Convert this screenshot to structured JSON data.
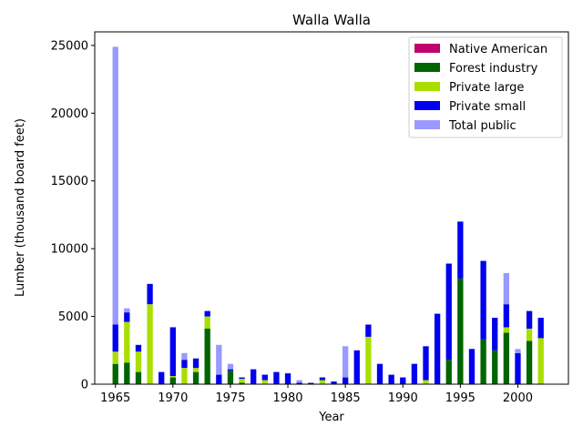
{
  "chart_data": {
    "type": "bar",
    "stacked": true,
    "title": "Walla Walla",
    "xlabel": "Year",
    "ylabel": "Lumber (thousand board feet)",
    "xlim": [
      1963.2,
      2004.4
    ],
    "ylim": [
      0,
      26000
    ],
    "xticks": [
      1965,
      1970,
      1975,
      1980,
      1985,
      1990,
      1995,
      2000
    ],
    "yticks": [
      0,
      5000,
      10000,
      15000,
      20000,
      25000
    ],
    "legend_position": "top-right",
    "grid": false,
    "x": [
      1965,
      1966,
      1967,
      1968,
      1969,
      1970,
      1971,
      1972,
      1973,
      1974,
      1975,
      1976,
      1977,
      1978,
      1979,
      1980,
      1981,
      1982,
      1983,
      1984,
      1985,
      1986,
      1987,
      1988,
      1989,
      1990,
      1991,
      1992,
      1993,
      1994,
      1995,
      1996,
      1997,
      1998,
      1999,
      2000,
      2001,
      2002
    ],
    "series": [
      {
        "name": "Native American",
        "color": "#c0006f",
        "values": [
          0,
          0,
          0,
          0,
          0,
          0,
          0,
          0,
          0,
          0,
          0,
          0,
          0,
          0,
          0,
          0,
          0,
          0,
          0,
          0,
          0,
          0,
          0,
          0,
          0,
          0,
          0,
          0,
          0,
          0,
          0,
          0,
          0,
          0,
          0,
          0,
          0,
          0
        ]
      },
      {
        "name": "Forest industry",
        "color": "#006400",
        "values": [
          1500,
          1600,
          900,
          0,
          0,
          500,
          0,
          900,
          4100,
          0,
          1000,
          100,
          0,
          0,
          0,
          0,
          0,
          0,
          0,
          0,
          0,
          0,
          0,
          0,
          0,
          0,
          0,
          0,
          0,
          1800,
          7800,
          0,
          3300,
          2500,
          3800,
          0,
          3200,
          0
        ]
      },
      {
        "name": "Private large",
        "color": "#aade00",
        "values": [
          900,
          3000,
          1500,
          5900,
          0,
          100,
          1200,
          300,
          900,
          0,
          0,
          300,
          0,
          300,
          0,
          0,
          0,
          0,
          300,
          0,
          0,
          0,
          3500,
          0,
          0,
          0,
          0,
          300,
          0,
          0,
          0,
          0,
          0,
          0,
          400,
          0,
          900,
          3400
        ]
      },
      {
        "name": "Private small",
        "color": "#0000ee",
        "values": [
          2000,
          700,
          500,
          1500,
          900,
          3600,
          600,
          700,
          400,
          700,
          100,
          100,
          1100,
          400,
          900,
          800,
          100,
          100,
          200,
          200,
          500,
          2500,
          900,
          1500,
          700,
          500,
          1500,
          2500,
          5200,
          7100,
          4200,
          2600,
          5800,
          2400,
          1700,
          2300,
          1300,
          1500
        ]
      },
      {
        "name": "Total public",
        "color": "#9999ff",
        "values": [
          20500,
          300,
          0,
          0,
          0,
          0,
          500,
          0,
          0,
          2200,
          400,
          0,
          0,
          0,
          0,
          0,
          200,
          0,
          0,
          0,
          2300,
          0,
          0,
          0,
          0,
          0,
          0,
          0,
          0,
          0,
          0,
          0,
          0,
          0,
          2300,
          300,
          0,
          0
        ]
      }
    ]
  }
}
